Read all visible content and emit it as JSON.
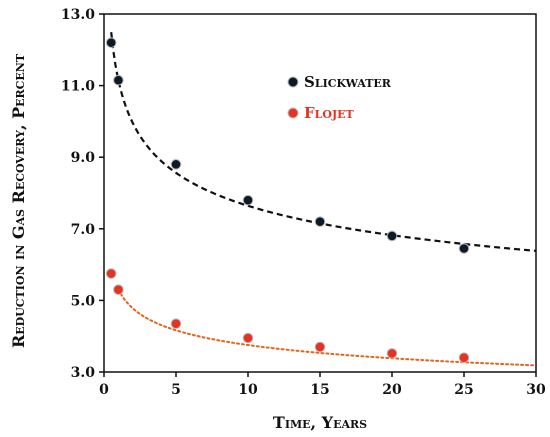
{
  "chart_data": {
    "type": "scatter",
    "xlabel": "Time, Years",
    "ylabel": "Reduction in Gas Recovery, Percent",
    "xlim": [
      0,
      30
    ],
    "ylim": [
      3.0,
      13.0
    ],
    "xticks": [
      0,
      5,
      10,
      15,
      20,
      25,
      30
    ],
    "yticks": [
      3.0,
      5.0,
      7.0,
      9.0,
      11.0,
      13.0
    ],
    "ytick_labels": [
      "3.0",
      "5.0",
      "7.0",
      "9.0",
      "11.0",
      "13.0"
    ],
    "xtick_labels": [
      "0",
      "5",
      "10",
      "15",
      "20",
      "25",
      "30"
    ],
    "grid": false,
    "legend_position": "top-right",
    "series": [
      {
        "name": "Slickwater",
        "color": "#0d1b26",
        "marker": "circle",
        "x": [
          0.5,
          1,
          5,
          10,
          15,
          20,
          25
        ],
        "y": [
          12.2,
          11.15,
          8.8,
          7.8,
          7.2,
          6.8,
          6.45
        ],
        "trendline": {
          "style": "dashed",
          "color": "#111111",
          "form": "power",
          "a": 11.15,
          "b": -0.164,
          "x_start": 0.5,
          "x_end": 30
        }
      },
      {
        "name": "Flojet",
        "color": "#e53323",
        "marker": "circle",
        "x": [
          0.5,
          1,
          5,
          10,
          15,
          20,
          25
        ],
        "y": [
          5.75,
          5.3,
          4.35,
          3.95,
          3.7,
          3.52,
          3.4
        ],
        "trendline": {
          "style": "dotted",
          "color": "#e8631a",
          "form": "power",
          "a": 5.3,
          "b": -0.1498,
          "x_start": 1,
          "x_end": 30
        }
      }
    ]
  }
}
